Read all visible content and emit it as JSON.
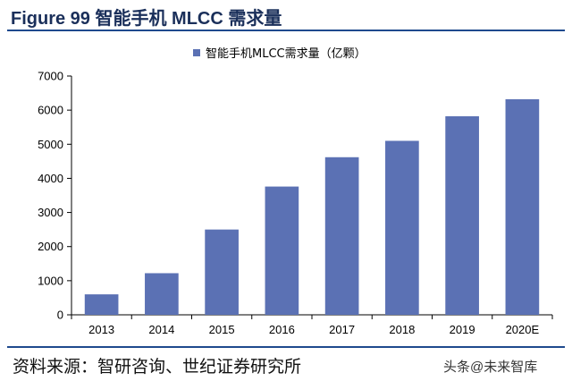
{
  "header": {
    "figure_title": "Figure 99  智能手机 MLCC 需求量"
  },
  "footer": {
    "source": "资料来源：智研咨询、世纪证券研究所",
    "watermark": "头条@未来智库"
  },
  "colors": {
    "bar": "#5b71b4",
    "rule": "#1f4a8e",
    "title": "#1a2f5a"
  },
  "chart_data": {
    "type": "bar",
    "categories": [
      "2013",
      "2014",
      "2015",
      "2016",
      "2017",
      "2018",
      "2019",
      "2020E"
    ],
    "series": [
      {
        "name": "智能手机MLCC需求量（亿颗）",
        "values": [
          600,
          1220,
          2500,
          3760,
          4620,
          5100,
          5820,
          6320
        ]
      }
    ],
    "ylim": [
      0,
      7000
    ],
    "yticks": [
      0,
      1000,
      2000,
      3000,
      4000,
      5000,
      6000,
      7000
    ],
    "legend": "top-center",
    "grid": false
  }
}
